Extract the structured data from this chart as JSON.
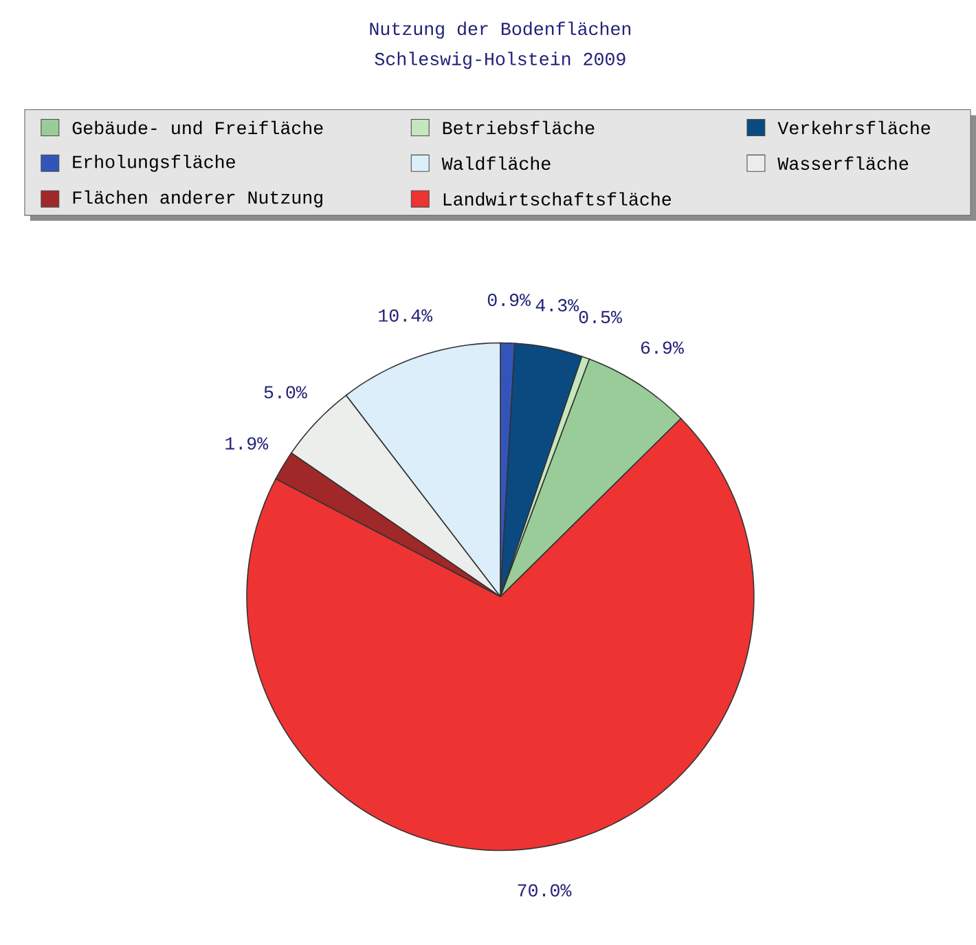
{
  "chart_data": {
    "type": "pie",
    "title": "Nutzung der Bodenflächen",
    "subtitle": "Schleswig-Holstein 2009",
    "categories": [
      "Gebäude- und Freifläche",
      "Betriebsfläche",
      "Verkehrsfläche",
      "Erholungsfläche",
      "Waldfläche",
      "Wasserfläche",
      "Flächen anderer Nutzung",
      "Landwirtschaftsfläche"
    ],
    "values": [
      6.9,
      0.5,
      4.3,
      0.9,
      10.4,
      5.0,
      1.9,
      70.0
    ],
    "value_labels": [
      "6.9%",
      "0.5%",
      "4.3%",
      "0.9%",
      "10.4%",
      "5.0%",
      "1.9%",
      "70.0%"
    ],
    "colors": [
      "#99cc99",
      "#c6e6bd",
      "#0b4a80",
      "#3355bb",
      "#dbeefa",
      "#eceeec",
      "#a02828",
      "#ee3333"
    ],
    "legend": "top"
  }
}
